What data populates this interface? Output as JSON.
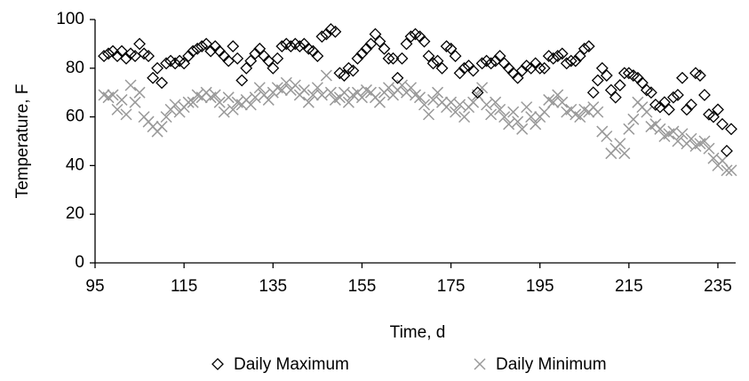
{
  "chart_data": {
    "type": "scatter",
    "x_label": "Time, d",
    "y_label": "Temperature, F",
    "xlim": [
      95,
      239
    ],
    "xticks": [
      95,
      115,
      135,
      155,
      175,
      195,
      215,
      235
    ],
    "ylim": [
      0,
      100
    ],
    "yticks": [
      0,
      20,
      40,
      60,
      80,
      100
    ],
    "legend": "bottom",
    "grid": false,
    "x": [
      97,
      98,
      99,
      100,
      101,
      102,
      103,
      104,
      105,
      106,
      107,
      108,
      109,
      110,
      111,
      112,
      113,
      114,
      115,
      116,
      117,
      118,
      119,
      120,
      121,
      122,
      123,
      124,
      125,
      126,
      127,
      128,
      129,
      130,
      131,
      132,
      133,
      134,
      135,
      136,
      137,
      138,
      139,
      140,
      141,
      142,
      143,
      144,
      145,
      146,
      147,
      148,
      149,
      150,
      151,
      152,
      153,
      154,
      155,
      156,
      157,
      158,
      159,
      160,
      161,
      162,
      163,
      164,
      165,
      166,
      167,
      168,
      169,
      170,
      171,
      172,
      173,
      174,
      175,
      176,
      177,
      178,
      179,
      180,
      181,
      182,
      183,
      184,
      185,
      186,
      187,
      188,
      189,
      190,
      191,
      192,
      193,
      194,
      195,
      196,
      197,
      198,
      199,
      200,
      201,
      202,
      203,
      204,
      205,
      206,
      207,
      208,
      209,
      210,
      211,
      212,
      213,
      214,
      215,
      216,
      217,
      218,
      219,
      220,
      221,
      222,
      223,
      224,
      225,
      226,
      227,
      228,
      229,
      230,
      231,
      232,
      233,
      234,
      235,
      236,
      237,
      238
    ],
    "series": [
      {
        "name": "Daily Maximum",
        "color": "#000000",
        "marker": "diamond",
        "values": [
          85,
          86,
          87,
          85,
          87,
          84,
          86,
          85,
          90,
          86,
          85,
          76,
          80,
          74,
          82,
          83,
          82,
          83,
          82,
          85,
          87,
          88,
          89,
          90,
          87,
          89,
          87,
          85,
          83,
          89,
          84,
          75,
          80,
          83,
          86,
          88,
          85,
          83,
          80,
          84,
          89,
          90,
          89,
          90,
          89,
          90,
          88,
          87,
          85,
          93,
          94,
          96,
          95,
          78,
          77,
          80,
          79,
          84,
          86,
          88,
          90,
          94,
          91,
          88,
          84,
          84,
          76,
          84,
          90,
          93,
          94,
          93,
          91,
          85,
          82,
          83,
          80,
          89,
          88,
          85,
          78,
          80,
          81,
          79,
          70,
          82,
          83,
          82,
          83,
          85,
          82,
          80,
          78,
          76,
          79,
          81,
          80,
          82,
          80,
          80,
          85,
          84,
          85,
          86,
          82,
          83,
          83,
          85,
          88,
          89,
          70,
          75,
          80,
          77,
          71,
          68,
          73,
          78,
          78,
          77,
          76,
          74,
          71,
          70,
          65,
          64,
          66,
          63,
          68,
          69,
          76,
          63,
          65,
          78,
          77,
          69,
          61,
          60,
          63,
          57,
          46,
          55
        ]
      },
      {
        "name": "Daily Minimum",
        "color": "#999999",
        "marker": "x",
        "values": [
          69,
          68,
          69,
          63,
          67,
          61,
          73,
          66,
          70,
          60,
          58,
          56,
          54,
          56,
          60,
          63,
          65,
          62,
          64,
          66,
          66,
          69,
          68,
          70,
          68,
          69,
          66,
          62,
          68,
          63,
          66,
          65,
          67,
          65,
          68,
          72,
          69,
          67,
          70,
          72,
          71,
          74,
          71,
          73,
          69,
          71,
          66,
          69,
          72,
          69,
          77,
          70,
          67,
          68,
          70,
          66,
          69,
          70,
          68,
          71,
          70,
          68,
          66,
          70,
          72,
          69,
          71,
          73,
          70,
          72,
          69,
          68,
          65,
          61,
          67,
          70,
          66,
          64,
          66,
          62,
          65,
          60,
          64,
          66,
          69,
          72,
          65,
          61,
          66,
          63,
          60,
          57,
          62,
          58,
          55,
          64,
          60,
          57,
          60,
          62,
          67,
          66,
          69,
          66,
          62,
          63,
          61,
          60,
          63,
          62,
          64,
          62,
          54,
          52,
          45,
          47,
          49,
          45,
          55,
          59,
          66,
          64,
          62,
          56,
          57,
          55,
          52,
          53,
          54,
          50,
          53,
          49,
          51,
          48,
          49,
          50,
          47,
          43,
          40,
          42,
          38,
          38
        ]
      }
    ]
  }
}
